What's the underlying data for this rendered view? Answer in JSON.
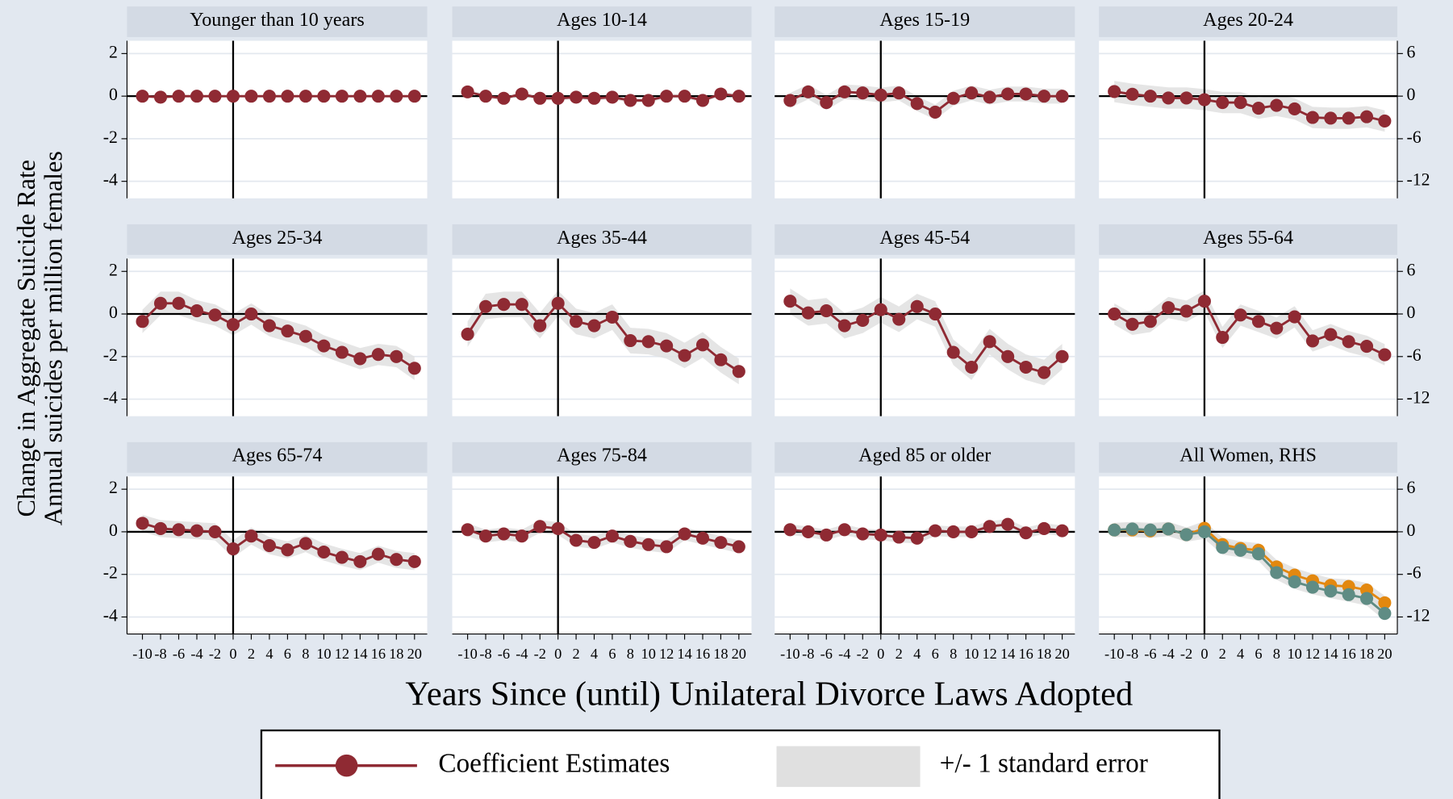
{
  "ylabel": [
    "Change in Aggregate Suicide Rate",
    "Annual suicides per million females"
  ],
  "xlabel": "Years Since (until) Unilateral Divorce Laws Adopted",
  "legend": [
    "Coefficient Estimates",
    "+/- 1 standard error"
  ],
  "band_color": "#e0e0e0",
  "chart_data": [
    {
      "type": "line",
      "title": "Younger than 10 years",
      "x": [
        -10,
        -8,
        -6,
        -4,
        -2,
        0,
        2,
        4,
        6,
        8,
        10,
        12,
        14,
        16,
        18,
        20
      ],
      "xlim": [
        -11.7,
        21.4
      ],
      "xticks": [
        -10,
        -8,
        -6,
        -4,
        -2,
        0,
        2,
        4,
        6,
        8,
        10,
        12,
        14,
        16,
        18,
        20
      ],
      "show_xtick_labels": false,
      "ylim": [
        -4.8,
        2.6
      ],
      "yticks": [
        -4,
        -2,
        0,
        2
      ],
      "y_axis": "left",
      "grid": true,
      "ref_x": 0,
      "ref_y": 0,
      "series": [
        {
          "color": "#8f2a33",
          "values": [
            0,
            -0.05,
            0,
            0,
            0,
            0,
            0,
            0,
            0,
            0,
            0,
            0,
            0,
            0,
            0,
            0
          ],
          "se": [
            0.05,
            0.05,
            0.05,
            0.05,
            0.05,
            0.05,
            0.05,
            0.05,
            0.05,
            0.05,
            0.05,
            0.05,
            0.05,
            0.05,
            0.05,
            0.05
          ]
        }
      ]
    },
    {
      "type": "line",
      "title": "Ages 10-14",
      "x": [
        -10,
        -8,
        -6,
        -4,
        -2,
        0,
        2,
        4,
        6,
        8,
        10,
        12,
        14,
        16,
        18,
        20
      ],
      "xlim": [
        -11.7,
        21.4
      ],
      "xticks": [
        -10,
        -8,
        -6,
        -4,
        -2,
        0,
        2,
        4,
        6,
        8,
        10,
        12,
        14,
        16,
        18,
        20
      ],
      "show_xtick_labels": false,
      "ylim": [
        -4.8,
        2.6
      ],
      "yticks": [
        -4,
        -2,
        0,
        2
      ],
      "y_axis": "hidden",
      "grid": true,
      "ref_x": 0,
      "ref_y": 0,
      "series": [
        {
          "color": "#8f2a33",
          "values": [
            0.2,
            0,
            -0.1,
            0.1,
            -0.1,
            -0.1,
            -0.05,
            -0.1,
            -0.05,
            -0.2,
            -0.2,
            0,
            0,
            -0.2,
            0.1,
            0
          ],
          "se": [
            0.1,
            0.1,
            0.1,
            0.1,
            0.1,
            0.1,
            0.1,
            0.1,
            0.1,
            0.1,
            0.1,
            0.1,
            0.1,
            0.1,
            0.1,
            0.1
          ]
        }
      ]
    },
    {
      "type": "line",
      "title": "Ages 15-19",
      "x": [
        -10,
        -8,
        -6,
        -4,
        -2,
        0,
        2,
        4,
        6,
        8,
        10,
        12,
        14,
        16,
        18,
        20
      ],
      "xlim": [
        -11.7,
        21.4
      ],
      "xticks": [
        -10,
        -8,
        -6,
        -4,
        -2,
        0,
        2,
        4,
        6,
        8,
        10,
        12,
        14,
        16,
        18,
        20
      ],
      "show_xtick_labels": false,
      "ylim": [
        -4.8,
        2.6
      ],
      "yticks": [
        -4,
        -2,
        0,
        2
      ],
      "y_axis": "hidden",
      "grid": true,
      "ref_x": 0,
      "ref_y": 0,
      "series": [
        {
          "color": "#8f2a33",
          "values": [
            -0.2,
            0.2,
            -0.3,
            0.2,
            0.15,
            0.05,
            0.15,
            -0.35,
            -0.75,
            -0.1,
            0.15,
            -0.05,
            0.1,
            0.1,
            0,
            0
          ],
          "se": [
            0.35,
            0.35,
            0.35,
            0.35,
            0.35,
            0.35,
            0.35,
            0.35,
            0.35,
            0.35,
            0.35,
            0.35,
            0.35,
            0.35,
            0.35,
            0.35
          ]
        }
      ]
    },
    {
      "type": "line",
      "title": "Ages 20-24",
      "x": [
        -10,
        -8,
        -6,
        -4,
        -2,
        0,
        2,
        4,
        6,
        8,
        10,
        12,
        14,
        16,
        18,
        20
      ],
      "xlim": [
        -11.7,
        21.4
      ],
      "xticks": [
        -10,
        -8,
        -6,
        -4,
        -2,
        0,
        2,
        4,
        6,
        8,
        10,
        12,
        14,
        16,
        18,
        20
      ],
      "show_xtick_labels": false,
      "ylim": [
        -14.4,
        7.8
      ],
      "yticks": [
        -12,
        -6,
        0,
        6
      ],
      "y_axis": "right",
      "grid": true,
      "ref_x": 0,
      "ref_y": 0,
      "series": [
        {
          "color": "#8f2a33",
          "values": [
            0.65,
            0.26,
            0,
            -0.26,
            -0.26,
            -0.5,
            -0.9,
            -0.9,
            -1.7,
            -1.3,
            -1.8,
            -3.0,
            -3.1,
            -3.1,
            -2.9,
            -3.5
          ],
          "se": [
            1.5,
            1.5,
            1.5,
            1.5,
            1.5,
            1.5,
            1.5,
            1.5,
            1.5,
            1.5,
            1.5,
            1.5,
            1.5,
            1.5,
            1.5,
            1.5
          ]
        }
      ]
    },
    {
      "type": "line",
      "title": "Ages 25-34",
      "x": [
        -10,
        -8,
        -6,
        -4,
        -2,
        0,
        2,
        4,
        6,
        8,
        10,
        12,
        14,
        16,
        18,
        20
      ],
      "xlim": [
        -11.7,
        21.4
      ],
      "xticks": [
        -10,
        -8,
        -6,
        -4,
        -2,
        0,
        2,
        4,
        6,
        8,
        10,
        12,
        14,
        16,
        18,
        20
      ],
      "show_xtick_labels": false,
      "ylim": [
        -4.8,
        2.6
      ],
      "yticks": [
        -4,
        -2,
        0,
        2
      ],
      "y_axis": "left",
      "grid": true,
      "ref_x": 0,
      "ref_y": 0,
      "series": [
        {
          "color": "#8f2a33",
          "values": [
            -0.35,
            0.5,
            0.5,
            0.15,
            -0.05,
            -0.5,
            0,
            -0.55,
            -0.8,
            -1.05,
            -1.5,
            -1.8,
            -2.1,
            -1.9,
            -2.0,
            -2.55
          ],
          "se": [
            0.55,
            0.55,
            0.55,
            0.5,
            0.5,
            0.5,
            0.5,
            0.5,
            0.5,
            0.5,
            0.5,
            0.5,
            0.5,
            0.5,
            0.5,
            0.55
          ]
        }
      ]
    },
    {
      "type": "line",
      "title": "Ages 35-44",
      "x": [
        -10,
        -8,
        -6,
        -4,
        -2,
        0,
        2,
        4,
        6,
        8,
        10,
        12,
        14,
        16,
        18,
        20
      ],
      "xlim": [
        -11.7,
        21.4
      ],
      "xticks": [
        -10,
        -8,
        -6,
        -4,
        -2,
        0,
        2,
        4,
        6,
        8,
        10,
        12,
        14,
        16,
        18,
        20
      ],
      "show_xtick_labels": false,
      "ylim": [
        -4.8,
        2.6
      ],
      "yticks": [
        -4,
        -2,
        0,
        2
      ],
      "y_axis": "hidden",
      "grid": true,
      "ref_x": 0,
      "ref_y": 0,
      "series": [
        {
          "color": "#8f2a33",
          "values": [
            -0.95,
            0.35,
            0.45,
            0.45,
            -0.55,
            0.5,
            -0.35,
            -0.55,
            -0.15,
            -1.25,
            -1.3,
            -1.5,
            -1.95,
            -1.45,
            -2.15,
            -2.7
          ],
          "se": [
            0.6,
            0.6,
            0.6,
            0.6,
            0.6,
            0.6,
            0.6,
            0.6,
            0.6,
            0.6,
            0.6,
            0.6,
            0.6,
            0.6,
            0.6,
            0.6
          ]
        }
      ]
    },
    {
      "type": "line",
      "title": "Ages 45-54",
      "x": [
        -10,
        -8,
        -6,
        -4,
        -2,
        0,
        2,
        4,
        6,
        8,
        10,
        12,
        14,
        16,
        18,
        20
      ],
      "xlim": [
        -11.7,
        21.4
      ],
      "xticks": [
        -10,
        -8,
        -6,
        -4,
        -2,
        0,
        2,
        4,
        6,
        8,
        10,
        12,
        14,
        16,
        18,
        20
      ],
      "show_xtick_labels": false,
      "ylim": [
        -4.8,
        2.6
      ],
      "yticks": [
        -4,
        -2,
        0,
        2
      ],
      "y_axis": "hidden",
      "grid": true,
      "ref_x": 0,
      "ref_y": 0,
      "series": [
        {
          "color": "#8f2a33",
          "values": [
            0.6,
            0.05,
            0.15,
            -0.55,
            -0.3,
            0.2,
            -0.25,
            0.35,
            0,
            -1.8,
            -2.5,
            -1.3,
            -2.0,
            -2.5,
            -2.75,
            -2.0
          ],
          "se": [
            0.6,
            0.6,
            0.6,
            0.6,
            0.6,
            0.6,
            0.6,
            0.6,
            0.6,
            0.6,
            0.6,
            0.6,
            0.6,
            0.6,
            0.6,
            0.6
          ]
        }
      ]
    },
    {
      "type": "line",
      "title": "Ages 55-64",
      "x": [
        -10,
        -8,
        -6,
        -4,
        -2,
        0,
        2,
        4,
        6,
        8,
        10,
        12,
        14,
        16,
        18,
        20
      ],
      "xlim": [
        -11.7,
        21.4
      ],
      "xticks": [
        -10,
        -8,
        -6,
        -4,
        -2,
        0,
        2,
        4,
        6,
        8,
        10,
        12,
        14,
        16,
        18,
        20
      ],
      "show_xtick_labels": false,
      "ylim": [
        -14.4,
        7.8
      ],
      "yticks": [
        -12,
        -6,
        0,
        6
      ],
      "y_axis": "right",
      "grid": true,
      "ref_x": 0,
      "ref_y": 0,
      "series": [
        {
          "color": "#8f2a33",
          "values": [
            0,
            -1.45,
            -1.05,
            0.9,
            0.4,
            1.8,
            -3.3,
            -0.15,
            -1.05,
            -2.0,
            -0.4,
            -3.8,
            -2.9,
            -3.9,
            -4.55,
            -5.75
          ],
          "se": [
            1.5,
            1.5,
            1.5,
            1.5,
            1.5,
            1.5,
            1.5,
            1.5,
            1.5,
            1.5,
            1.5,
            1.5,
            1.5,
            1.5,
            1.5,
            1.5
          ]
        }
      ]
    },
    {
      "type": "line",
      "title": "Ages 65-74",
      "x": [
        -10,
        -8,
        -6,
        -4,
        -2,
        0,
        2,
        4,
        6,
        8,
        10,
        12,
        14,
        16,
        18,
        20
      ],
      "xlim": [
        -11.7,
        21.4
      ],
      "xticks": [
        -10,
        -8,
        -6,
        -4,
        -2,
        0,
        2,
        4,
        6,
        8,
        10,
        12,
        14,
        16,
        18,
        20
      ],
      "show_xtick_labels": true,
      "ylim": [
        -4.8,
        2.6
      ],
      "yticks": [
        -4,
        -2,
        0,
        2
      ],
      "y_axis": "left",
      "grid": true,
      "ref_x": 0,
      "ref_y": 0,
      "series": [
        {
          "color": "#8f2a33",
          "values": [
            0.4,
            0.15,
            0.1,
            0.05,
            0,
            -0.8,
            -0.2,
            -0.65,
            -0.85,
            -0.55,
            -0.95,
            -1.2,
            -1.4,
            -1.05,
            -1.3,
            -1.4
          ],
          "se": [
            0.4,
            0.4,
            0.4,
            0.4,
            0.4,
            0.4,
            0.4,
            0.4,
            0.4,
            0.4,
            0.4,
            0.4,
            0.4,
            0.4,
            0.4,
            0.4
          ]
        }
      ]
    },
    {
      "type": "line",
      "title": "Ages 75-84",
      "x": [
        -10,
        -8,
        -6,
        -4,
        -2,
        0,
        2,
        4,
        6,
        8,
        10,
        12,
        14,
        16,
        18,
        20
      ],
      "xlim": [
        -11.7,
        21.4
      ],
      "xticks": [
        -10,
        -8,
        -6,
        -4,
        -2,
        0,
        2,
        4,
        6,
        8,
        10,
        12,
        14,
        16,
        18,
        20
      ],
      "show_xtick_labels": true,
      "ylim": [
        -4.8,
        2.6
      ],
      "yticks": [
        -4,
        -2,
        0,
        2
      ],
      "y_axis": "hidden",
      "grid": true,
      "ref_x": 0,
      "ref_y": 0,
      "series": [
        {
          "color": "#8f2a33",
          "values": [
            0.1,
            -0.2,
            -0.1,
            -0.2,
            0.25,
            0.15,
            -0.4,
            -0.5,
            -0.2,
            -0.45,
            -0.6,
            -0.7,
            -0.1,
            -0.3,
            -0.5,
            -0.7
          ],
          "se": [
            0.3,
            0.3,
            0.3,
            0.3,
            0.3,
            0.3,
            0.3,
            0.3,
            0.3,
            0.3,
            0.3,
            0.3,
            0.3,
            0.3,
            0.3,
            0.3
          ]
        }
      ]
    },
    {
      "type": "line",
      "title": "Aged 85 or older",
      "x": [
        -10,
        -8,
        -6,
        -4,
        -2,
        0,
        2,
        4,
        6,
        8,
        10,
        12,
        14,
        16,
        18,
        20
      ],
      "xlim": [
        -11.7,
        21.4
      ],
      "xticks": [
        -10,
        -8,
        -6,
        -4,
        -2,
        0,
        2,
        4,
        6,
        8,
        10,
        12,
        14,
        16,
        18,
        20
      ],
      "show_xtick_labels": true,
      "ylim": [
        -4.8,
        2.6
      ],
      "yticks": [
        -4,
        -2,
        0,
        2
      ],
      "y_axis": "hidden",
      "grid": true,
      "ref_x": 0,
      "ref_y": 0,
      "series": [
        {
          "color": "#8f2a33",
          "values": [
            0.1,
            0,
            -0.15,
            0.1,
            -0.1,
            -0.15,
            -0.25,
            -0.3,
            0.05,
            0,
            0,
            0.25,
            0.35,
            -0.05,
            0.15,
            0.05
          ],
          "se": [
            0.25,
            0.25,
            0.25,
            0.25,
            0.25,
            0.25,
            0.25,
            0.25,
            0.25,
            0.25,
            0.25,
            0.25,
            0.25,
            0.25,
            0.25,
            0.25
          ]
        }
      ]
    },
    {
      "type": "line",
      "title": "All Women, RHS",
      "x": [
        -10,
        -8,
        -6,
        -4,
        -2,
        0,
        2,
        4,
        6,
        8,
        10,
        12,
        14,
        16,
        18,
        20
      ],
      "xlim": [
        -11.7,
        21.4
      ],
      "xticks": [
        -10,
        -8,
        -6,
        -4,
        -2,
        0,
        2,
        4,
        6,
        8,
        10,
        12,
        14,
        16,
        18,
        20
      ],
      "show_xtick_labels": true,
      "ylim": [
        -14.4,
        7.8
      ],
      "yticks": [
        -12,
        -6,
        0,
        6
      ],
      "y_axis": "right",
      "grid": true,
      "ref_x": 0,
      "ref_y": 0,
      "series": [
        {
          "color": "#e3880f",
          "values": [
            0.26,
            0.26,
            0.13,
            0.4,
            -0.4,
            0.5,
            -1.8,
            -2.35,
            -2.6,
            -4.95,
            -6.1,
            -6.9,
            -7.55,
            -7.7,
            -8.2,
            -10.0
          ],
          "se": [
            1,
            1,
            1,
            1,
            1,
            1,
            1,
            1,
            1,
            1,
            1,
            1,
            1,
            1,
            1,
            1
          ]
        },
        {
          "color": "#5f8c84",
          "values": [
            0.26,
            0.4,
            0.26,
            0.4,
            -0.4,
            0,
            -2.2,
            -2.6,
            -3.1,
            -5.75,
            -7.05,
            -7.8,
            -8.35,
            -8.85,
            -9.4,
            -11.5
          ],
          "se": [
            1,
            1,
            1,
            1,
            1,
            1,
            1,
            1,
            1,
            1,
            1,
            1,
            1,
            1,
            1,
            1
          ]
        }
      ]
    }
  ]
}
